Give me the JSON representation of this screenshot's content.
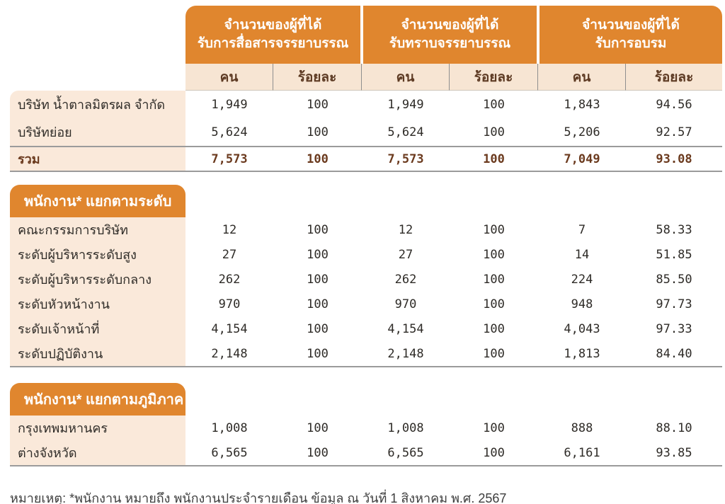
{
  "colors": {
    "accent_orange": "#E0862E",
    "subheader_peach": "#F7E5D3",
    "label_peach": "#FAE9DA",
    "dark_brown_text": "#5D3A23",
    "total_brown_text": "#6B3A1E",
    "line_gray": "#9B9B9B"
  },
  "table": {
    "column_groups": [
      {
        "title_line1": "จำนวนของผู้ที่ได้",
        "title_line2": "รับการสื่อสารจรรยาบรรณ"
      },
      {
        "title_line1": "จำนวนของผู้ที่ได้",
        "title_line2": "รับทราบจรรยาบรรณ"
      },
      {
        "title_line1": "จำนวนของผู้ที่ได้",
        "title_line2": "รับการอบรม"
      }
    ],
    "sub_headers": [
      "คน",
      "ร้อยละ"
    ],
    "company_rows": [
      {
        "label": "บริษัท น้ำตาลมิตรผล จำกัด",
        "values": [
          "1,949",
          "100",
          "1,949",
          "100",
          "1,843",
          "94.56"
        ]
      },
      {
        "label": "บริษัทย่อย",
        "values": [
          "5,624",
          "100",
          "5,624",
          "100",
          "5,206",
          "92.57"
        ]
      }
    ],
    "total_row": {
      "label": "รวม",
      "values": [
        "7,573",
        "100",
        "7,573",
        "100",
        "7,049",
        "93.08"
      ]
    },
    "sections": [
      {
        "title": "พนักงาน* แยกตามระดับ",
        "rows": [
          {
            "label": "คณะกรรมการบริษัท",
            "values": [
              "12",
              "100",
              "12",
              "100",
              "7",
              "58.33"
            ]
          },
          {
            "label": "ระดับผู้บริหารระดับสูง",
            "values": [
              "27",
              "100",
              "27",
              "100",
              "14",
              "51.85"
            ]
          },
          {
            "label": "ระดับผู้บริหารระดับกลาง",
            "values": [
              "262",
              "100",
              "262",
              "100",
              "224",
              "85.50"
            ]
          },
          {
            "label": "ระดับหัวหน้างาน",
            "values": [
              "970",
              "100",
              "970",
              "100",
              "948",
              "97.73"
            ]
          },
          {
            "label": "ระดับเจ้าหน้าที่",
            "values": [
              "4,154",
              "100",
              "4,154",
              "100",
              "4,043",
              "97.33"
            ]
          },
          {
            "label": "ระดับปฏิบัติงาน",
            "values": [
              "2,148",
              "100",
              "2,148",
              "100",
              "1,813",
              "84.40"
            ]
          }
        ]
      },
      {
        "title": "พนักงาน* แยกตามภูมิภาค",
        "rows": [
          {
            "label": "กรุงเทพมหานคร",
            "values": [
              "1,008",
              "100",
              "1,008",
              "100",
              "888",
              "88.10"
            ]
          },
          {
            "label": "ต่างจังหวัด",
            "values": [
              "6,565",
              "100",
              "6,565",
              "100",
              "6,161",
              "93.85"
            ]
          }
        ]
      }
    ]
  },
  "footnote": "หมายเหตุ: *พนักงาน หมายถึง พนักงานประจำรายเดือน ข้อมูล ณ วันที่ 1 สิงหาคม พ.ศ. 2567"
}
